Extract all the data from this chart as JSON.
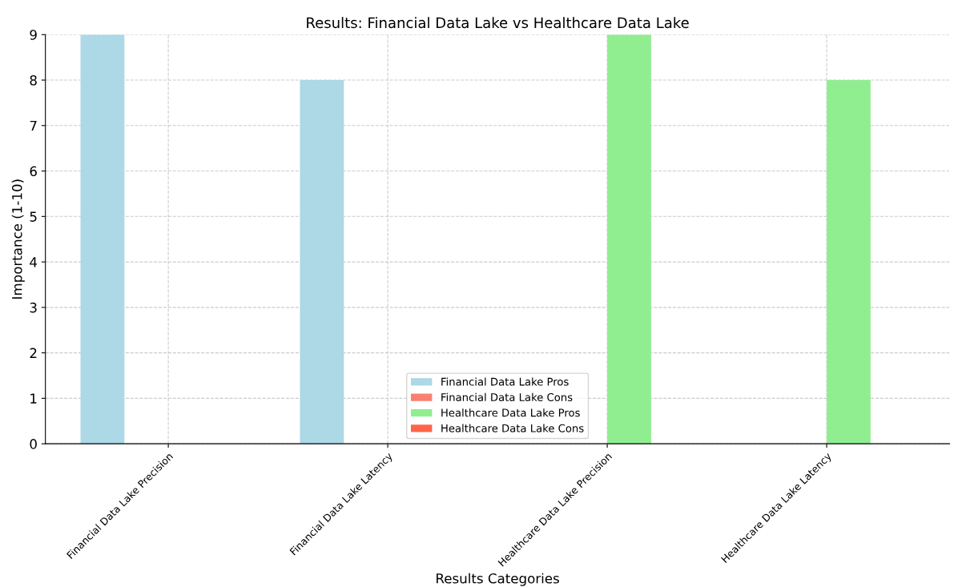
{
  "chart_data": {
    "type": "bar",
    "title": "Results: Financial Data Lake vs Healthcare Data Lake",
    "xlabel": "Results Categories",
    "ylabel": "Importance (1-10)",
    "categories": [
      "Financial Data Lake Precision",
      "Financial Data Lake Latency",
      "Healthcare Data Lake Precision",
      "Healthcare Data Lake Latency"
    ],
    "series": [
      {
        "name": "Financial Data Lake Pros",
        "color": "#add8e6",
        "values": [
          9,
          8,
          0,
          0
        ]
      },
      {
        "name": "Financial Data Lake Cons",
        "color": "#fa8072",
        "values": [
          0,
          0,
          0,
          0
        ]
      },
      {
        "name": "Healthcare Data Lake Pros",
        "color": "#90ee90",
        "values": [
          0,
          0,
          9,
          8
        ]
      },
      {
        "name": "Healthcare Data Lake Cons",
        "color": "#ff6347",
        "values": [
          0,
          0,
          0,
          0
        ]
      }
    ],
    "ylim": [
      0,
      9
    ],
    "yticks": [
      0,
      1,
      2,
      3,
      4,
      5,
      6,
      7,
      8,
      9
    ],
    "grid": true,
    "legend": "bottom"
  }
}
